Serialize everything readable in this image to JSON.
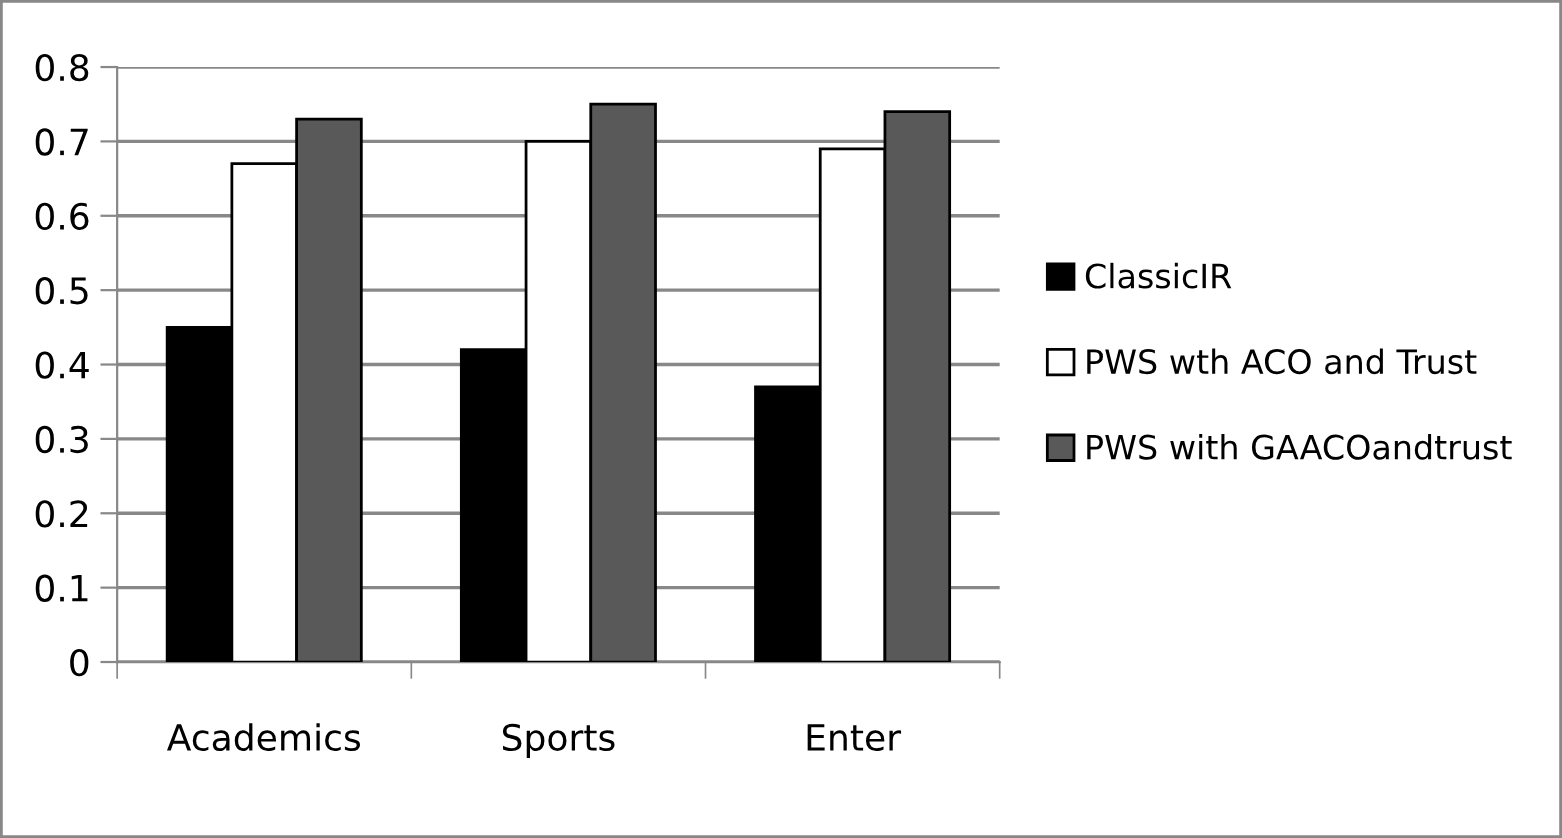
{
  "chart_data": {
    "type": "bar",
    "categories": [
      "Academics",
      "Sports",
      "Enter"
    ],
    "series": [
      {
        "name": "ClassicIR",
        "color": "#000000",
        "values": [
          0.45,
          0.42,
          0.37
        ]
      },
      {
        "name": "PWS wth ACO and Trust",
        "color": "#ffffff",
        "values": [
          0.67,
          0.7,
          0.69
        ]
      },
      {
        "name": "PWS with GAACOandtrust",
        "color": "#595959",
        "values": [
          0.73,
          0.75,
          0.74
        ]
      }
    ],
    "ylim": [
      0,
      0.8
    ],
    "yticks": [
      0,
      0.1,
      0.2,
      0.3,
      0.4,
      0.5,
      0.6,
      0.7,
      0.8
    ],
    "grid": "y",
    "legend": "right"
  }
}
